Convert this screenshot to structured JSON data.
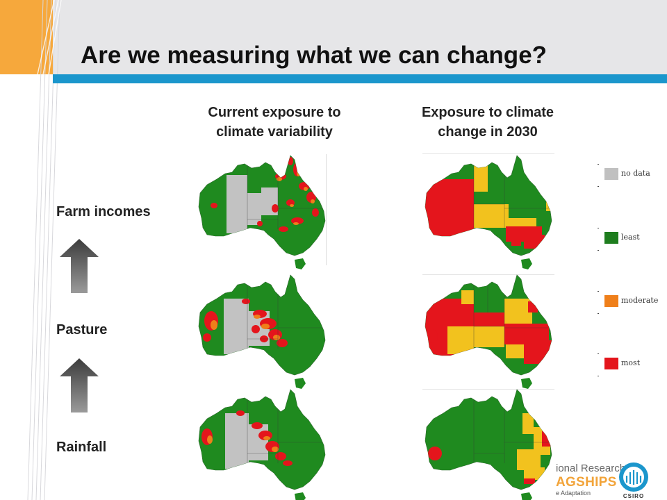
{
  "slide": {
    "title": "Are we measuring what we can change?"
  },
  "columns": {
    "current": {
      "line1": "Current exposure to",
      "line2": "climate variability"
    },
    "future": {
      "line1": "Exposure to climate",
      "line2": "change in 2030"
    }
  },
  "rows": [
    {
      "label": "Farm incomes"
    },
    {
      "label": "Pasture"
    },
    {
      "label": "Rainfall"
    }
  ],
  "legend": [
    {
      "label": "no data",
      "color": "#c0c0c0"
    },
    {
      "label": "least",
      "color": "#1e7d1e"
    },
    {
      "label": "moderate",
      "color": "#ef7f1a"
    },
    {
      "label": "most",
      "color": "#e4151c"
    }
  ],
  "colors": {
    "green": "#1f8a1f",
    "yellow": "#f2c21e",
    "red": "#e4151c",
    "orange": "#ef7f1a",
    "grey": "#c2c2c2",
    "accent_blue": "#1b96cc",
    "accent_orange": "#f6a83c"
  },
  "logos": {
    "partner_line1": "ional Research",
    "partner_line2": "AGSHIPS",
    "partner_line3": "e Adaptation",
    "csiro": "CSIRO"
  }
}
